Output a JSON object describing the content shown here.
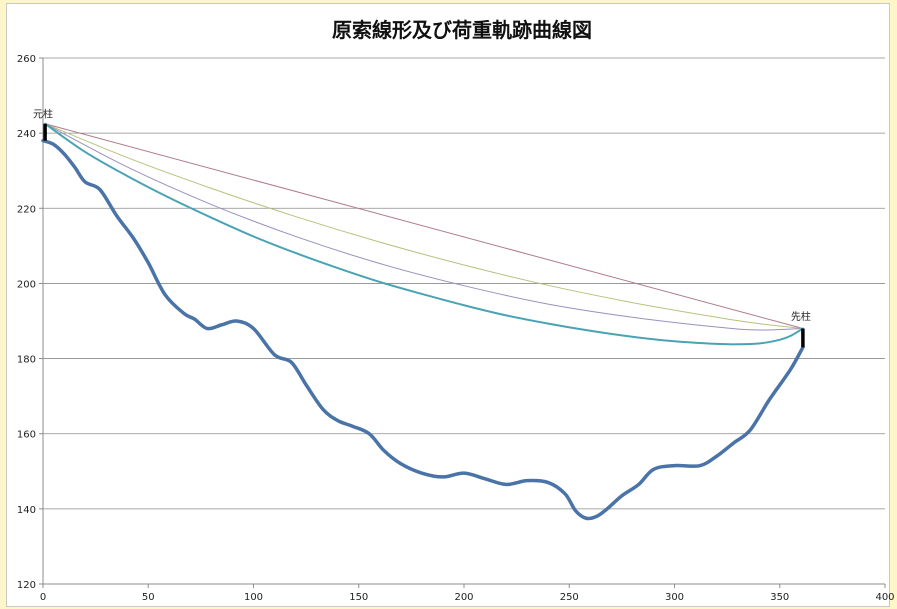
{
  "chart_data": {
    "type": "line",
    "title": "原索線形及び荷重軌跡曲線図",
    "xlabel": "",
    "ylabel": "",
    "xlim": [
      0,
      400
    ],
    "ylim": [
      120,
      260
    ],
    "xticks": [
      0,
      50,
      100,
      150,
      200,
      250,
      300,
      350,
      400
    ],
    "yticks": [
      120,
      140,
      160,
      180,
      200,
      220,
      240,
      260
    ],
    "grid": "horizontal",
    "legend": "none",
    "annotations": [
      {
        "text": "元柱",
        "x": 0,
        "y": 245
      },
      {
        "text": "先柱",
        "x": 361,
        "y": 191
      }
    ],
    "markers": [
      {
        "name": "元柱",
        "x": 1,
        "y_top": 242.5,
        "y_bottom": 238
      },
      {
        "name": "先柱",
        "x": 361,
        "y_top": 188,
        "y_bottom": 183
      }
    ],
    "series": [
      {
        "color": "#b07a8a",
        "width": 1,
        "x": [
          1,
          361
        ],
        "y": [
          242.5,
          188
        ]
      },
      {
        "color": "#b6c27f",
        "width": 1,
        "x": [
          1,
          40,
          80,
          120,
          160,
          200,
          240,
          280,
          320,
          340,
          361
        ],
        "y": [
          242.5,
          233.5,
          225.3,
          217.8,
          211.0,
          204.9,
          199.5,
          194.9,
          191.0,
          189.3,
          188
        ]
      },
      {
        "color": "#9b8fbf",
        "width": 1,
        "x": [
          1,
          40,
          80,
          120,
          160,
          200,
          240,
          280,
          320,
          340,
          361
        ],
        "y": [
          242.5,
          231.0,
          221.0,
          212.5,
          205.3,
          199.4,
          194.5,
          191.0,
          188.4,
          187.6,
          188
        ]
      },
      {
        "color": "#4aa3b5",
        "width": 2,
        "x": [
          1,
          20,
          40,
          60,
          80,
          100,
          120,
          140,
          160,
          180,
          200,
          220,
          240,
          260,
          280,
          300,
          320,
          330,
          340,
          350,
          355,
          361
        ],
        "y": [
          242.5,
          235.0,
          228.6,
          222.8,
          217.5,
          212.5,
          208.1,
          204.1,
          200.4,
          197.2,
          194.2,
          191.5,
          189.3,
          187.4,
          185.8,
          184.6,
          183.9,
          183.8,
          184.0,
          185.0,
          186.0,
          188
        ]
      },
      {
        "color": "#4a73a8",
        "width": 3.5,
        "x": [
          0,
          5,
          10,
          15,
          20,
          27,
          35,
          43,
          50,
          58,
          67,
          72,
          78,
          85,
          92,
          100,
          110,
          118,
          125,
          133,
          140,
          147,
          155,
          162,
          170,
          180,
          190,
          200,
          210,
          220,
          230,
          240,
          248,
          253,
          258,
          263,
          268,
          275,
          283,
          290,
          300,
          312,
          320,
          328,
          336,
          345,
          355,
          361
        ],
        "y": [
          238,
          237,
          234.5,
          231,
          227,
          225,
          218,
          212,
          205.5,
          197,
          192,
          190.5,
          188,
          189,
          190,
          188,
          181,
          179,
          173,
          166.5,
          163.5,
          162,
          160,
          155.5,
          152,
          149.5,
          148.5,
          149.5,
          148,
          146.5,
          147.5,
          147,
          144,
          139.5,
          137.5,
          138,
          140,
          143.5,
          146.5,
          150.5,
          151.5,
          151.5,
          154,
          157.5,
          161,
          169,
          177,
          183
        ]
      }
    ]
  }
}
